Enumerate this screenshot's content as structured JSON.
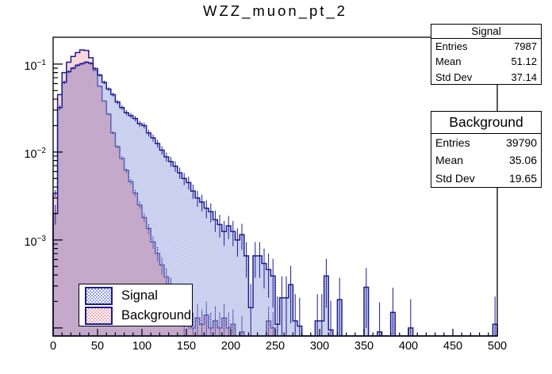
{
  "title": "WZZ_muon_pt_2",
  "colors": {
    "histogram_line": "#1c1c8f",
    "signal_fill": "#96a3de",
    "background_fill": "#f2aeb6",
    "axis": "#000000"
  },
  "stats_boxes": [
    {
      "title": "Signal",
      "rows": [
        {
          "label": "Entries",
          "value": "7987"
        },
        {
          "label": "Mean",
          "value": "51.12"
        },
        {
          "label": "Std Dev",
          "value": "37.14"
        }
      ]
    },
    {
      "title": "Background",
      "rows": [
        {
          "label": "Entries",
          "value": "39790"
        },
        {
          "label": "Mean",
          "value": "35.06"
        },
        {
          "label": "Std Dev",
          "value": "19.65"
        }
      ]
    }
  ],
  "legend": {
    "items": [
      {
        "label": "Signal",
        "series": "signal"
      },
      {
        "label": "Background",
        "series": "background"
      }
    ]
  },
  "chart_data": {
    "type": "bar",
    "subtype": "step_histogram_overlay",
    "title": "WZZ_muon_pt_2",
    "xlabel": "",
    "ylabel": "",
    "x_range": [
      0,
      500
    ],
    "y_scale": "log",
    "y_range": [
      8.1e-05,
      0.202
    ],
    "bin_width": 5,
    "x_major_tick_step": 50,
    "x_minor_tick_step": 10,
    "x_tick_labels": [
      "0",
      "50",
      "100",
      "150",
      "200",
      "250",
      "300",
      "350",
      "400",
      "450",
      "500"
    ],
    "y_decade_ticks": [
      {
        "exponent": "−1",
        "value": 0.1
      },
      {
        "exponent": "−2",
        "value": 0.01
      },
      {
        "exponent": "−3",
        "value": 0.001
      }
    ],
    "grid": false,
    "legend_position": "bottom-left",
    "series": [
      {
        "name": "Signal",
        "entries": 7987,
        "mean": 51.12,
        "std_dev": 37.14,
        "values": [
          0.002,
          0.032,
          0.062,
          0.082,
          0.09,
          0.097,
          0.101,
          0.105,
          0.102,
          0.089,
          0.075,
          0.062,
          0.052,
          0.045,
          0.037,
          0.032,
          0.028,
          0.026,
          0.024,
          0.021,
          0.02,
          0.0165,
          0.0145,
          0.0125,
          0.0105,
          0.0088,
          0.0078,
          0.0069,
          0.0058,
          0.005,
          0.0045,
          0.0036,
          0.003,
          0.0027,
          0.0023,
          0.0021,
          0.0017,
          0.0015,
          0.00125,
          0.00145,
          0.00125,
          0.001,
          0.00115,
          0.00066,
          0.00017,
          0.00066,
          0.00066,
          0.00054,
          0.00046,
          0.00039,
          0.00011,
          0.00022,
          0.00022,
          0.00031,
          0.00012,
          0.000105,
          0,
          0,
          0,
          0.00012,
          0.00012,
          0.00039,
          9.5e-05,
          0,
          0.00021,
          0,
          0,
          0,
          0,
          0,
          0.00029,
          0,
          0,
          9e-05,
          0,
          0,
          0.00015,
          0,
          0,
          0,
          0.0001,
          0,
          0,
          0,
          0,
          0,
          0,
          0,
          0,
          0,
          0,
          0,
          0,
          0,
          0,
          0,
          0,
          0,
          0,
          0.00011
        ]
      },
      {
        "name": "Background",
        "entries": 39790,
        "mean": 35.06,
        "std_dev": 19.65,
        "values": [
          0.0034,
          0.045,
          0.08,
          0.105,
          0.122,
          0.135,
          0.145,
          0.143,
          0.118,
          0.085,
          0.056,
          0.038,
          0.027,
          0.0165,
          0.0115,
          0.0085,
          0.0062,
          0.0046,
          0.0034,
          0.0025,
          0.0018,
          0.00135,
          0.00095,
          0.0007,
          0.00052,
          0.00038,
          0.00029,
          0.00022,
          0.00017,
          0.00013,
          0.00016,
          0.0001,
          0.00013,
          0.00011,
          0.00014,
          0.0001,
          0.00012,
          0.0001,
          0.00013,
          0.0001,
          0.00011,
          0,
          9e-05,
          0,
          0,
          0,
          0,
          0,
          0.00012,
          0.0001,
          0,
          0,
          0,
          0,
          0,
          0,
          0,
          0,
          0,
          0,
          0,
          0,
          0,
          0,
          0,
          0,
          0,
          0,
          0,
          0,
          0,
          0,
          0,
          0,
          0,
          0,
          0,
          0,
          0,
          0,
          0,
          0,
          0,
          0,
          0,
          0,
          0,
          0,
          0,
          0,
          0,
          0,
          0,
          0,
          0,
          0,
          0,
          0,
          0,
          0
        ]
      }
    ]
  }
}
